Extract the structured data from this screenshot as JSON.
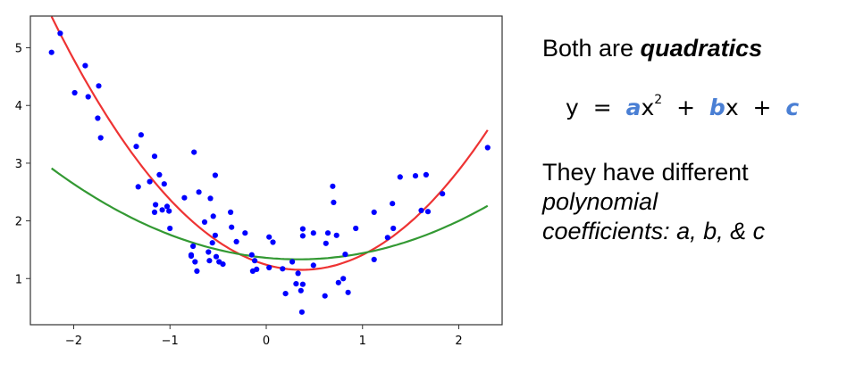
{
  "text": {
    "line1_prefix": "Both are ",
    "line1_emph": "quadratics",
    "eq_y": "y",
    "eq_eq": "=",
    "eq_a": "a",
    "eq_x1": "x",
    "eq_sup": "2",
    "eq_plus1": "+",
    "eq_b": "b",
    "eq_x2": "x",
    "eq_plus2": "+",
    "eq_c": "c",
    "line3": "They have different",
    "line4": "polynomial",
    "line5": "coefficients: a, b,  & c"
  },
  "colors": {
    "points": "#0000ff",
    "red_curve": "#ee3333",
    "green_curve": "#339933",
    "coef": "#4a7fd4"
  },
  "chart_data": {
    "type": "scatter",
    "title": "",
    "xlabel": "",
    "ylabel": "",
    "xlim": [
      -2.45,
      2.45
    ],
    "ylim": [
      0.2,
      5.55
    ],
    "xticks": [
      -2,
      -1,
      0,
      1,
      2
    ],
    "xtick_labels": [
      "−2",
      "−1",
      "0",
      "1",
      "2"
    ],
    "yticks": [
      1,
      2,
      3,
      4,
      5
    ],
    "ytick_labels": [
      "1",
      "2",
      "3",
      "4",
      "5"
    ],
    "grid": false,
    "points": [
      [
        -2.23,
        4.92
      ],
      [
        -2.14,
        5.25
      ],
      [
        -1.99,
        4.22
      ],
      [
        -1.88,
        4.69
      ],
      [
        -1.85,
        4.15
      ],
      [
        -1.74,
        4.34
      ],
      [
        -1.75,
        3.78
      ],
      [
        -1.72,
        3.44
      ],
      [
        -1.35,
        3.29
      ],
      [
        -1.3,
        3.49
      ],
      [
        -1.33,
        2.59
      ],
      [
        -1.21,
        2.68
      ],
      [
        -1.16,
        3.12
      ],
      [
        -1.11,
        2.8
      ],
      [
        -1.06,
        2.64
      ],
      [
        -1.15,
        2.28
      ],
      [
        -1.08,
        2.19
      ],
      [
        -1.03,
        2.25
      ],
      [
        -1.01,
        2.17
      ],
      [
        -1.0,
        1.87
      ],
      [
        -1.16,
        2.15
      ],
      [
        -0.85,
        2.4
      ],
      [
        -0.75,
        3.19
      ],
      [
        -0.7,
        2.5
      ],
      [
        -0.64,
        1.98
      ],
      [
        -0.58,
        2.39
      ],
      [
        -0.53,
        2.79
      ],
      [
        -0.55,
        2.08
      ],
      [
        -0.53,
        1.75
      ],
      [
        -0.76,
        1.56
      ],
      [
        -0.78,
        1.41
      ],
      [
        -0.74,
        1.29
      ],
      [
        -0.72,
        1.13
      ],
      [
        -0.78,
        1.39
      ],
      [
        -0.6,
        1.46
      ],
      [
        -0.59,
        1.31
      ],
      [
        -0.56,
        1.62
      ],
      [
        -0.52,
        1.38
      ],
      [
        -0.49,
        1.29
      ],
      [
        -0.45,
        1.25
      ],
      [
        -0.36,
        1.89
      ],
      [
        -0.37,
        2.15
      ],
      [
        -0.31,
        1.64
      ],
      [
        -0.22,
        1.79
      ],
      [
        -0.15,
        1.41
      ],
      [
        -0.12,
        1.31
      ],
      [
        -0.14,
        1.13
      ],
      [
        -0.1,
        1.16
      ],
      [
        0.03,
        1.72
      ],
      [
        0.07,
        1.63
      ],
      [
        0.03,
        1.19
      ],
      [
        0.17,
        1.17
      ],
      [
        0.2,
        0.74
      ],
      [
        0.27,
        1.29
      ],
      [
        0.31,
        0.91
      ],
      [
        0.33,
        1.09
      ],
      [
        0.36,
        0.79
      ],
      [
        0.37,
        0.42
      ],
      [
        0.38,
        1.74
      ],
      [
        0.38,
        1.86
      ],
      [
        0.38,
        0.9
      ],
      [
        0.49,
        1.79
      ],
      [
        0.49,
        1.23
      ],
      [
        0.62,
        1.61
      ],
      [
        0.61,
        0.7
      ],
      [
        0.64,
        1.79
      ],
      [
        0.69,
        2.6
      ],
      [
        0.7,
        2.32
      ],
      [
        0.73,
        1.75
      ],
      [
        0.75,
        0.93
      ],
      [
        0.8,
        1.0
      ],
      [
        0.82,
        1.42
      ],
      [
        0.85,
        0.76
      ],
      [
        0.93,
        1.87
      ],
      [
        1.12,
        2.15
      ],
      [
        1.12,
        1.33
      ],
      [
        1.26,
        1.71
      ],
      [
        1.31,
        2.3
      ],
      [
        1.32,
        1.87
      ],
      [
        1.39,
        2.76
      ],
      [
        1.55,
        2.78
      ],
      [
        1.61,
        2.18
      ],
      [
        1.66,
        2.8
      ],
      [
        1.68,
        2.16
      ],
      [
        1.83,
        2.47
      ],
      [
        2.3,
        3.27
      ]
    ],
    "series": [
      {
        "color": "red",
        "coefficients": {
          "a": 0.65,
          "b": -0.48,
          "c": 1.24
        },
        "x_range": [
          -2.23,
          2.3
        ]
      },
      {
        "color": "green",
        "coefficients": {
          "a": 0.24,
          "b": -0.16,
          "c": 1.36
        },
        "x_range": [
          -2.23,
          2.3
        ]
      }
    ]
  }
}
